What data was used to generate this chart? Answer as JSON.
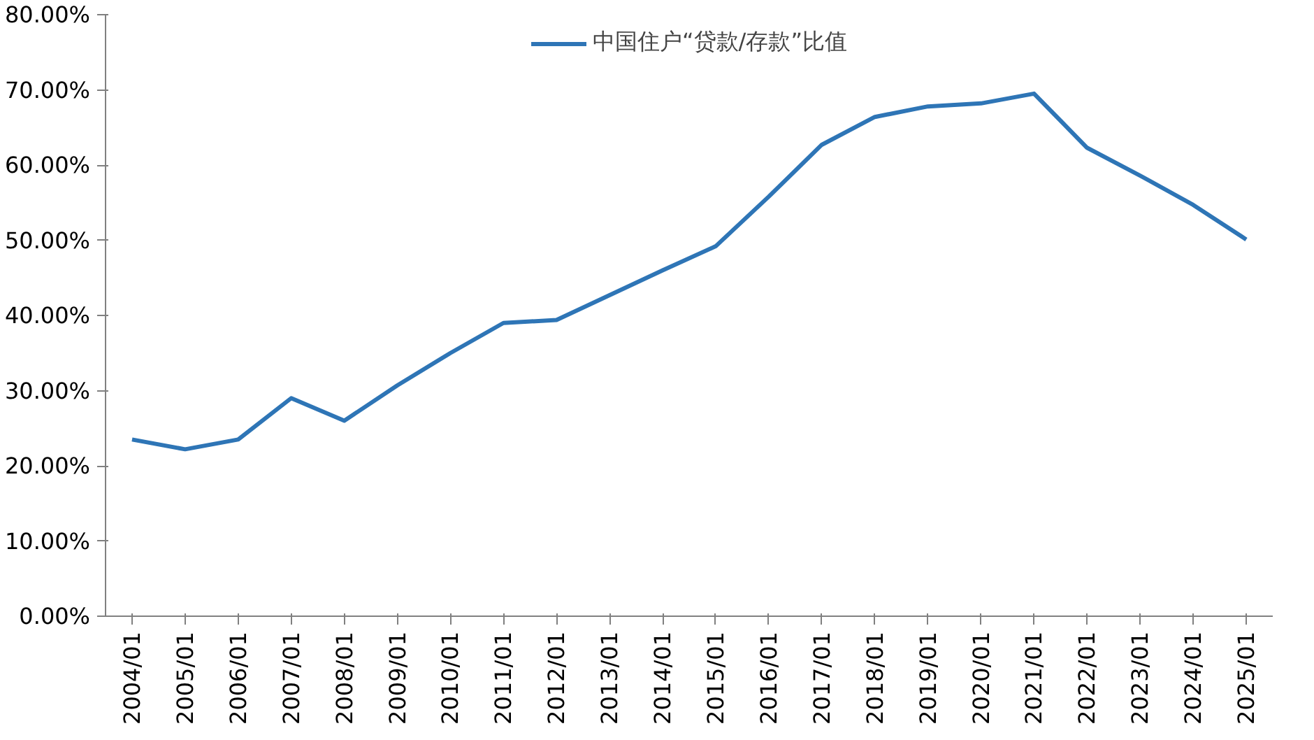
{
  "chart_data": {
    "type": "line",
    "categories": [
      "2004/01",
      "2005/01",
      "2006/01",
      "2007/01",
      "2008/01",
      "2009/01",
      "2010/01",
      "2011/01",
      "2012/01",
      "2013/01",
      "2014/01",
      "2015/01",
      "2016/01",
      "2017/01",
      "2018/01",
      "2019/01",
      "2020/01",
      "2021/01",
      "2022/01",
      "2023/01",
      "2024/01",
      "2025/01"
    ],
    "series": [
      {
        "name": "中国住户“贷款/存款”比值",
        "color": "#2e75b6",
        "values": [
          23.5,
          22.2,
          23.5,
          29.0,
          26.0,
          30.7,
          35.0,
          39.0,
          39.4,
          42.7,
          46.0,
          49.2,
          55.8,
          62.7,
          66.4,
          67.8,
          68.2,
          69.5,
          62.3,
          58.6,
          54.7,
          50.1
        ]
      }
    ],
    "ylim": [
      0,
      80
    ],
    "yticks": [
      {
        "value": 0,
        "label": "0.00%"
      },
      {
        "value": 10,
        "label": "10.00%"
      },
      {
        "value": 20,
        "label": "20.00%"
      },
      {
        "value": 30,
        "label": "30.00%"
      },
      {
        "value": 40,
        "label": "40.00%"
      },
      {
        "value": 50,
        "label": "50.00%"
      },
      {
        "value": 60,
        "label": "60.00%"
      },
      {
        "value": 70,
        "label": "70.00%"
      },
      {
        "value": 80,
        "label": "80.00%"
      }
    ],
    "grid": false,
    "legend": "top",
    "marker": "none",
    "line_style": "solid"
  }
}
